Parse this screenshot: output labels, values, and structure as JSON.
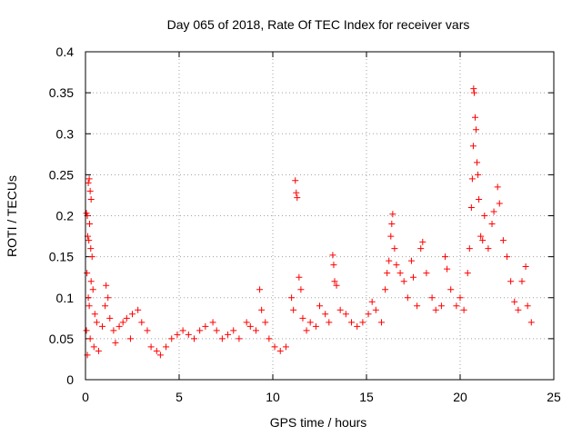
{
  "chart_data": {
    "type": "scatter",
    "title": "Day 065 of 2018, Rate Of TEC Index for receiver vars",
    "xlabel": "GPS time / hours",
    "ylabel": "ROTI / TECUs",
    "xlim": [
      0,
      25
    ],
    "ylim": [
      0,
      0.4
    ],
    "xticks": [
      0,
      5,
      10,
      15,
      20,
      25
    ],
    "yticks": [
      0,
      0.05,
      0.1,
      0.15,
      0.2,
      0.25,
      0.3,
      0.35,
      0.4
    ],
    "xtick_labels": [
      "0",
      "5",
      "10",
      "15",
      "20",
      "25"
    ],
    "ytick_labels": [
      "0",
      "0.05",
      "0.1",
      "0.15",
      "0.2",
      "0.25",
      "0.3",
      "0.35",
      "0.4"
    ],
    "grid": true,
    "marker": "+",
    "color": "#ff0000",
    "series": [
      {
        "points": [
          [
            0.05,
            0.203
          ],
          [
            0.1,
            0.2
          ],
          [
            0.15,
            0.24
          ],
          [
            0.2,
            0.245
          ],
          [
            0.25,
            0.23
          ],
          [
            0.3,
            0.22
          ],
          [
            0.22,
            0.19
          ],
          [
            0.18,
            0.17
          ],
          [
            0.28,
            0.16
          ],
          [
            0.12,
            0.175
          ],
          [
            0.35,
            0.15
          ],
          [
            0.08,
            0.13
          ],
          [
            0.3,
            0.12
          ],
          [
            0.4,
            0.11
          ],
          [
            0.15,
            0.1
          ],
          [
            0.2,
            0.09
          ],
          [
            0.5,
            0.08
          ],
          [
            0.6,
            0.07
          ],
          [
            0.05,
            0.06
          ],
          [
            0.25,
            0.05
          ],
          [
            0.45,
            0.04
          ],
          [
            0.7,
            0.035
          ],
          [
            0.1,
            0.03
          ],
          [
            0.9,
            0.065
          ],
          [
            1.1,
            0.115
          ],
          [
            1.2,
            0.1
          ],
          [
            1.05,
            0.09
          ],
          [
            1.3,
            0.075
          ],
          [
            1.5,
            0.06
          ],
          [
            1.8,
            0.065
          ],
          [
            2.0,
            0.07
          ],
          [
            2.2,
            0.075
          ],
          [
            2.5,
            0.08
          ],
          [
            2.8,
            0.085
          ],
          [
            3.0,
            0.07
          ],
          [
            3.3,
            0.06
          ],
          [
            1.6,
            0.045
          ],
          [
            2.4,
            0.05
          ],
          [
            3.5,
            0.04
          ],
          [
            3.8,
            0.035
          ],
          [
            4.0,
            0.03
          ],
          [
            4.3,
            0.04
          ],
          [
            4.6,
            0.05
          ],
          [
            4.9,
            0.055
          ],
          [
            5.2,
            0.06
          ],
          [
            5.5,
            0.055
          ],
          [
            5.8,
            0.05
          ],
          [
            6.1,
            0.06
          ],
          [
            6.4,
            0.065
          ],
          [
            6.8,
            0.07
          ],
          [
            7.0,
            0.06
          ],
          [
            7.3,
            0.05
          ],
          [
            7.6,
            0.055
          ],
          [
            7.9,
            0.06
          ],
          [
            8.2,
            0.05
          ],
          [
            8.6,
            0.07
          ],
          [
            8.8,
            0.065
          ],
          [
            9.1,
            0.06
          ],
          [
            9.3,
            0.11
          ],
          [
            9.4,
            0.085
          ],
          [
            9.6,
            0.07
          ],
          [
            9.8,
            0.05
          ],
          [
            10.1,
            0.04
          ],
          [
            10.4,
            0.035
          ],
          [
            10.7,
            0.04
          ],
          [
            11.0,
            0.1
          ],
          [
            11.1,
            0.085
          ],
          [
            11.2,
            0.243
          ],
          [
            11.25,
            0.228
          ],
          [
            11.3,
            0.222
          ],
          [
            11.4,
            0.125
          ],
          [
            11.5,
            0.11
          ],
          [
            11.6,
            0.075
          ],
          [
            11.8,
            0.06
          ],
          [
            12.0,
            0.07
          ],
          [
            12.3,
            0.065
          ],
          [
            12.5,
            0.09
          ],
          [
            12.8,
            0.08
          ],
          [
            13.0,
            0.07
          ],
          [
            13.2,
            0.152
          ],
          [
            13.25,
            0.14
          ],
          [
            13.3,
            0.12
          ],
          [
            13.4,
            0.115
          ],
          [
            13.6,
            0.085
          ],
          [
            13.9,
            0.08
          ],
          [
            14.2,
            0.07
          ],
          [
            14.5,
            0.065
          ],
          [
            14.8,
            0.07
          ],
          [
            15.1,
            0.08
          ],
          [
            15.3,
            0.095
          ],
          [
            15.5,
            0.085
          ],
          [
            15.8,
            0.07
          ],
          [
            16.0,
            0.11
          ],
          [
            16.1,
            0.13
          ],
          [
            16.2,
            0.145
          ],
          [
            16.3,
            0.175
          ],
          [
            16.35,
            0.19
          ],
          [
            16.4,
            0.202
          ],
          [
            16.5,
            0.16
          ],
          [
            16.6,
            0.14
          ],
          [
            16.8,
            0.13
          ],
          [
            17.0,
            0.12
          ],
          [
            17.2,
            0.1
          ],
          [
            17.4,
            0.145
          ],
          [
            17.5,
            0.125
          ],
          [
            17.7,
            0.09
          ],
          [
            17.9,
            0.16
          ],
          [
            18.0,
            0.168
          ],
          [
            18.2,
            0.13
          ],
          [
            18.5,
            0.1
          ],
          [
            18.7,
            0.085
          ],
          [
            19.0,
            0.09
          ],
          [
            19.2,
            0.15
          ],
          [
            19.3,
            0.135
          ],
          [
            19.5,
            0.11
          ],
          [
            19.8,
            0.09
          ],
          [
            20.0,
            0.1
          ],
          [
            20.2,
            0.085
          ],
          [
            20.4,
            0.13
          ],
          [
            20.5,
            0.16
          ],
          [
            20.6,
            0.21
          ],
          [
            20.65,
            0.245
          ],
          [
            20.7,
            0.285
          ],
          [
            20.72,
            0.355
          ],
          [
            20.75,
            0.35
          ],
          [
            20.8,
            0.32
          ],
          [
            20.85,
            0.305
          ],
          [
            20.9,
            0.265
          ],
          [
            20.95,
            0.25
          ],
          [
            21.0,
            0.22
          ],
          [
            21.1,
            0.175
          ],
          [
            21.2,
            0.17
          ],
          [
            21.3,
            0.2
          ],
          [
            21.5,
            0.16
          ],
          [
            21.7,
            0.19
          ],
          [
            21.8,
            0.205
          ],
          [
            22.0,
            0.235
          ],
          [
            22.1,
            0.215
          ],
          [
            22.3,
            0.17
          ],
          [
            22.5,
            0.15
          ],
          [
            22.7,
            0.12
          ],
          [
            22.9,
            0.095
          ],
          [
            23.1,
            0.085
          ],
          [
            23.3,
            0.12
          ],
          [
            23.5,
            0.138
          ],
          [
            23.6,
            0.09
          ],
          [
            23.8,
            0.07
          ]
        ]
      }
    ]
  }
}
